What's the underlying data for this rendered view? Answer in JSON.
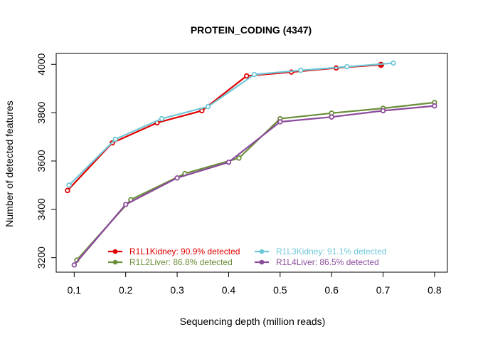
{
  "chart_data": {
    "type": "line",
    "title": "PROTEIN_CODING (4347)",
    "xlabel": "Sequencing depth (million reads)",
    "ylabel": "Number of detected features",
    "xlim": [
      0.065,
      0.825
    ],
    "ylim": [
      3140,
      4045
    ],
    "x_ticks": [
      0.1,
      0.2,
      0.3,
      0.4,
      0.5,
      0.6,
      0.7,
      0.8
    ],
    "x_tick_labels": [
      "0.1",
      "0.2",
      "0.3",
      "0.4",
      "0.5",
      "0.6",
      "0.7",
      "0.8"
    ],
    "y_ticks": [
      3200,
      3400,
      3600,
      3800,
      4000
    ],
    "y_tick_labels": [
      "3200",
      "3400",
      "3600",
      "3800",
      "4000"
    ],
    "grid": false,
    "legend_position": "bottom-center",
    "series": [
      {
        "name": "R1L1Kidney: 90.9% detected",
        "color": "#e00000",
        "x": [
          0.087,
          0.174,
          0.261,
          0.348,
          0.435,
          0.522,
          0.609,
          0.696
        ],
        "y": [
          3478,
          3675,
          3758,
          3808,
          3952,
          3968,
          3985,
          3998
        ],
        "final_marker": "filled"
      },
      {
        "name": "R1L2Liver: 86.8% detected",
        "color": "#6b8e3a",
        "x": [
          0.105,
          0.21,
          0.315,
          0.42,
          0.5,
          0.6,
          0.7,
          0.8
        ],
        "y": [
          3190,
          3440,
          3548,
          3612,
          3775,
          3798,
          3818,
          3842
        ],
        "final_marker": "open"
      },
      {
        "name": "R1L3Kidney: 91.1% detected",
        "color": "#6fc8d8",
        "x": [
          0.09,
          0.18,
          0.27,
          0.36,
          0.45,
          0.54,
          0.63,
          0.72
        ],
        "y": [
          3500,
          3690,
          3775,
          3825,
          3958,
          3975,
          3990,
          4005
        ],
        "final_marker": "open"
      },
      {
        "name": "R1L4Liver: 86.5% detected",
        "color": "#8b4a9c",
        "x": [
          0.1,
          0.2,
          0.3,
          0.4,
          0.5,
          0.6,
          0.7,
          0.8
        ],
        "y": [
          3170,
          3420,
          3530,
          3595,
          3762,
          3782,
          3808,
          3828
        ],
        "final_marker": "open"
      }
    ]
  }
}
